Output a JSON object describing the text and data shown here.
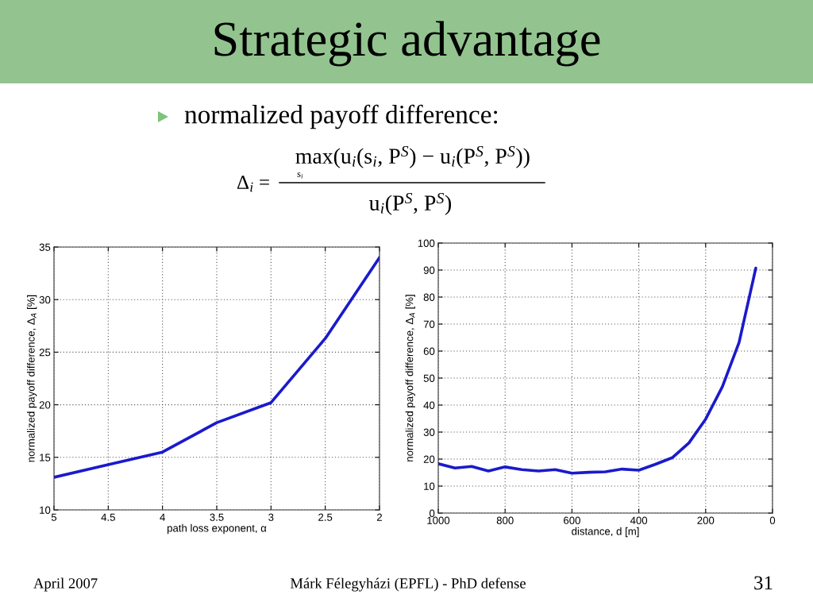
{
  "chart_data": [
    {
      "type": "other",
      "title": "Strategic advantage",
      "annotations": [
        "normalized payoff difference:",
        "Δ$_{i}$ =",
        "max(u$_{i}$(s$_{i}$, P$^{S}$) − u$_{i}$(P$^{S}$, P$^{S}$))",
        "s$_{i}$",
        "u$_{i}$(P$^{S}$, P$^{S}$)",
        "April 2007",
        "Márk Félegyházi (EPFL) - PhD defense",
        "31"
      ]
    },
    {
      "type": "line",
      "xlabel": "path loss exponent, α",
      "ylabel": "normalized payoff difference, Δ$_{A}$ [%]",
      "x": [
        5,
        4.5,
        4,
        3.5,
        3,
        2.5,
        2
      ],
      "series": [
        {
          "color": "#1a1acc",
          "values": [
            13.1,
            14.3,
            15.5,
            18.3,
            20.2,
            26.3,
            34.0
          ]
        }
      ],
      "xlim": [
        5,
        2
      ],
      "ylim": [
        10,
        35
      ],
      "xticks": [
        5,
        4.5,
        4,
        3.5,
        3,
        2.5,
        2
      ],
      "yticks": [
        10,
        15,
        20,
        25,
        30,
        35
      ],
      "grid": true,
      "line_style": "solid"
    },
    {
      "type": "line",
      "xlabel": "distance, d [m]",
      "ylabel": "normalized payoff difference, Δ$_{A}$ [%]",
      "x": [
        1000,
        950,
        900,
        850,
        800,
        750,
        700,
        650,
        600,
        550,
        500,
        450,
        400,
        350,
        300,
        250,
        200,
        150,
        100,
        50
      ],
      "series": [
        {
          "color": "#1a1acc",
          "values": [
            18.3,
            16.7,
            17.3,
            15.6,
            17.1,
            16.1,
            15.6,
            16.1,
            14.8,
            15.1,
            15.3,
            16.3,
            15.9,
            18.1,
            20.5,
            26.0,
            34.8,
            46.8,
            63.2,
            90.7
          ]
        }
      ],
      "xlim": [
        1000,
        0
      ],
      "ylim": [
        0,
        100
      ],
      "xticks": [
        1000,
        800,
        600,
        400,
        200,
        0
      ],
      "yticks": [
        0,
        10,
        20,
        30,
        40,
        50,
        60,
        70,
        80,
        90,
        100
      ],
      "grid": true,
      "line_style": "solid"
    }
  ]
}
